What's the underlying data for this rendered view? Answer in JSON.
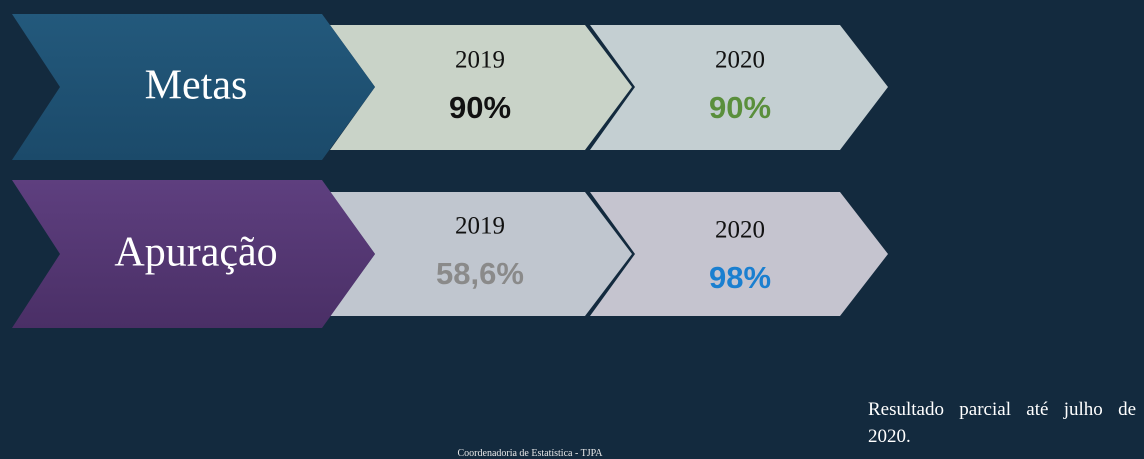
{
  "rows": [
    {
      "label": "Metas",
      "cells": [
        {
          "year": "2019",
          "value": "90%"
        },
        {
          "year": "2020",
          "value": "90%"
        }
      ]
    },
    {
      "label": "Apuração",
      "cells": [
        {
          "year": "2019",
          "value": "58,6%"
        },
        {
          "year": "2020",
          "value": "98%"
        }
      ]
    }
  ],
  "note": "Resultado parcial até julho de 2020.",
  "footer": "Coordenadoria de Estatística - TJPA"
}
